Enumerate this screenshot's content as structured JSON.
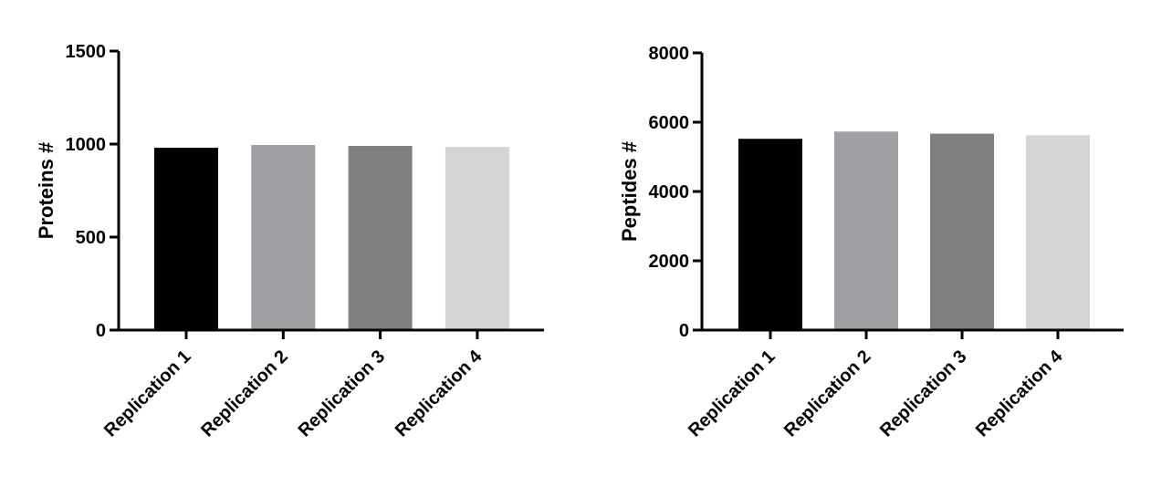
{
  "chart_data": [
    {
      "type": "bar",
      "categories": [
        "Replication 1",
        "Replication 2",
        "Replication 3",
        "Replication 4"
      ],
      "values": [
        980,
        995,
        990,
        985
      ],
      "colors": [
        "#000000",
        "#a0a0a4",
        "#808080",
        "#d4d4d4"
      ],
      "xlabel": "",
      "ylabel": "Proteins #",
      "ylim": [
        0,
        1500
      ],
      "yticks": [
        0,
        500,
        1000,
        1500
      ],
      "ytick_labels": [
        "0",
        "500",
        "1000",
        "1500"
      ],
      "grid": false,
      "legend": "none"
    },
    {
      "type": "bar",
      "categories": [
        "Replication 1",
        "Replication 2",
        "Replication 3",
        "Replication 4"
      ],
      "values": [
        5520,
        5730,
        5670,
        5620
      ],
      "colors": [
        "#000000",
        "#a0a0a4",
        "#808080",
        "#d4d4d4"
      ],
      "xlabel": "",
      "ylabel": "Peptides #",
      "ylim": [
        0,
        8000
      ],
      "yticks": [
        0,
        2000,
        4000,
        6000,
        8000
      ],
      "ytick_labels": [
        "0",
        "2000",
        "4000",
        "6000",
        "8000"
      ],
      "grid": false,
      "legend": "none"
    }
  ]
}
